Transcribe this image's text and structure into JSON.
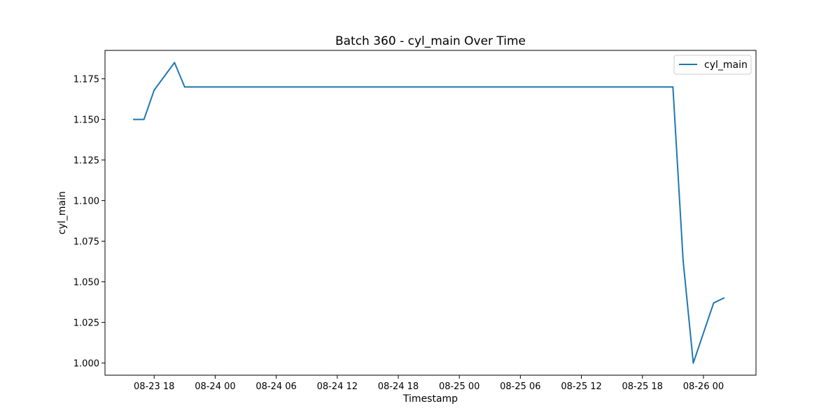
{
  "chart_data": {
    "type": "line",
    "title": "Batch 360 - cyl_main Over Time",
    "xlabel": "Timestamp",
    "ylabel": "cyl_main",
    "x_type": "datetime",
    "xlim": [
      "2023-08-23 13:10",
      "2023-08-26 05:10"
    ],
    "ylim": [
      0.9925,
      1.1925
    ],
    "x_ticks": [
      "2023-08-23 18:00",
      "2023-08-24 00:00",
      "2023-08-24 06:00",
      "2023-08-24 12:00",
      "2023-08-24 18:00",
      "2023-08-25 00:00",
      "2023-08-25 06:00",
      "2023-08-25 12:00",
      "2023-08-25 18:00",
      "2023-08-26 00:00"
    ],
    "x_tick_labels": [
      "08-23 18",
      "08-24 00",
      "08-24 06",
      "08-24 12",
      "08-24 18",
      "08-25 00",
      "08-25 06",
      "08-25 12",
      "08-25 18",
      "08-26 00"
    ],
    "y_ticks": [
      1.0,
      1.025,
      1.05,
      1.075,
      1.1,
      1.125,
      1.15,
      1.175
    ],
    "y_tick_labels": [
      "1.000",
      "1.025",
      "1.050",
      "1.075",
      "1.100",
      "1.125",
      "1.150",
      "1.175"
    ],
    "grid": false,
    "legend": {
      "placement": "top-right",
      "entries": [
        "cyl_main"
      ]
    },
    "series": [
      {
        "name": "cyl_main",
        "color": "#1f77b4",
        "points": [
          {
            "x": "2023-08-23 16:00",
            "y": 1.15
          },
          {
            "x": "2023-08-23 17:00",
            "y": 1.15
          },
          {
            "x": "2023-08-23 18:00",
            "y": 1.168
          },
          {
            "x": "2023-08-23 20:00",
            "y": 1.185
          },
          {
            "x": "2023-08-23 21:00",
            "y": 1.17
          },
          {
            "x": "2023-08-25 21:00",
            "y": 1.17
          },
          {
            "x": "2023-08-25 22:00",
            "y": 1.063
          },
          {
            "x": "2023-08-25 23:00",
            "y": 1.0
          },
          {
            "x": "2023-08-26 01:00",
            "y": 1.037
          },
          {
            "x": "2023-08-26 02:00",
            "y": 1.04
          }
        ]
      }
    ]
  }
}
